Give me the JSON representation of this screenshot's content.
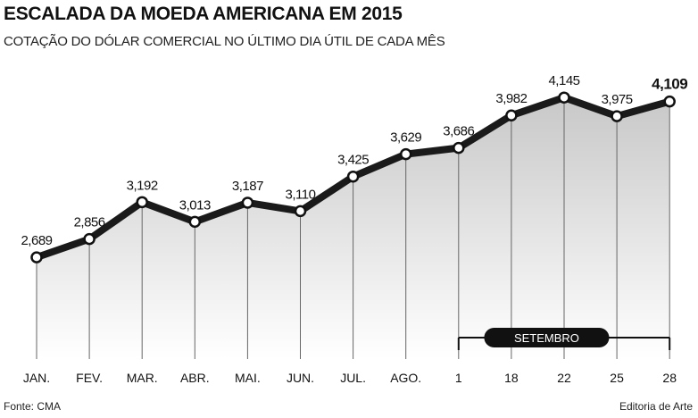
{
  "title": "ESCALADA DA MOEDA AMERICANA EM 2015",
  "subtitle": "COTAÇÃO DO DÓLAR COMERCIAL NO ÚLTIMO DIA ÚTIL DE CADA MÊS",
  "source": "Fonte: CMA",
  "credit": "Editoria de Arte",
  "chart_data": {
    "type": "line",
    "title": "ESCALADA DA MOEDA AMERICANA EM 2015",
    "subtitle": "COTAÇÃO DO DÓLAR COMERCIAL NO ÚLTIMO DIA ÚTIL DE CADA MÊS",
    "categories": [
      "JAN.",
      "FEV.",
      "MAR.",
      "ABR.",
      "MAI.",
      "JUN.",
      "JUL.",
      "AGO.",
      "1",
      "18",
      "22",
      "25",
      "28"
    ],
    "values": [
      2.689,
      2.856,
      3.192,
      3.013,
      3.187,
      3.11,
      3.425,
      3.629,
      3.686,
      3.982,
      4.145,
      3.975,
      4.109
    ],
    "value_labels": [
      "2,689",
      "2,856",
      "3,192",
      "3,013",
      "3,187",
      "3,110",
      "3,425",
      "3,629",
      "3,686",
      "3,982",
      "4,145",
      "3,975",
      "4,109"
    ],
    "highlight_last": true,
    "bracket_label": "SETEMBRO",
    "bracket_range": [
      "1",
      "28"
    ],
    "ylim": [
      1.6,
      4.35
    ],
    "grid": false,
    "line_color": "#1a1a1a",
    "fill_color": "#d9d9d9"
  }
}
